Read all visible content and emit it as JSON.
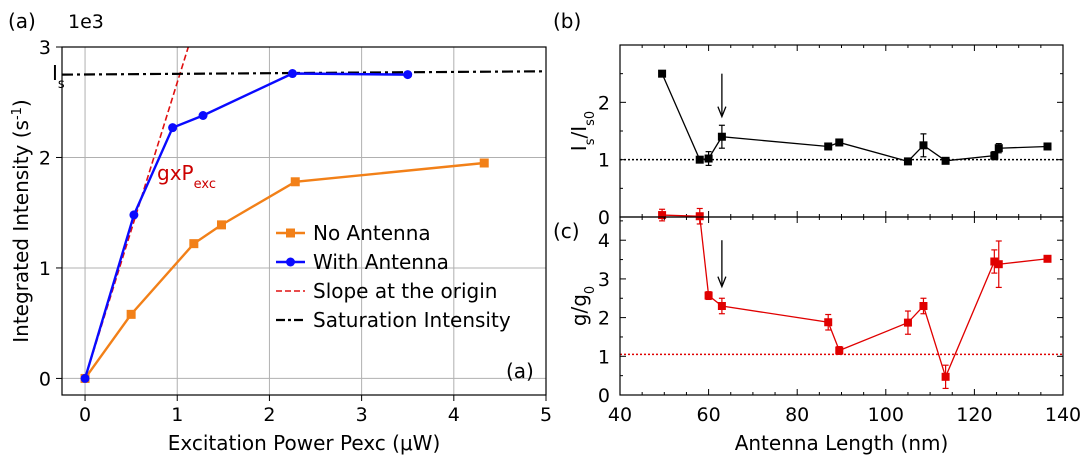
{
  "chart_data": [
    {
      "panel_label": "(a)",
      "corner_label": "(a)",
      "type": "line",
      "xlabel": "Excitation Power Pexc (μW)",
      "ylabel_main": "Integrated Intensity (s",
      "ylabel_sup": "-1",
      "ylabel_end": ")",
      "exponent_label": "1e3",
      "xlim": [
        -0.25,
        5.0
      ],
      "ylim": [
        -0.15,
        3.0
      ],
      "xticks": [
        0,
        1,
        2,
        3,
        4,
        5
      ],
      "yticks": [
        0,
        1,
        2,
        3
      ],
      "grid": true,
      "legend_position": "lower-right",
      "series": [
        {
          "name": "No Antenna",
          "color": "#f28018",
          "marker": "square",
          "x": [
            0,
            0.5,
            1.18,
            1.48,
            2.28,
            4.33
          ],
          "y": [
            0,
            0.58,
            1.22,
            1.39,
            1.78,
            1.95
          ]
        },
        {
          "name": "With Antenna",
          "color": "#0a0aff",
          "marker": "circle",
          "x": [
            0,
            0.53,
            0.95,
            1.28,
            2.25,
            3.5
          ],
          "y": [
            0,
            1.48,
            2.27,
            2.38,
            2.76,
            2.75
          ]
        },
        {
          "name": "Slope at the origin",
          "color": "#e01010",
          "style": "dashed",
          "x": [
            0,
            1.12
          ],
          "y": [
            0,
            3.0
          ]
        },
        {
          "name": "Saturation Intensity",
          "color": "#000000",
          "style": "dashdot",
          "x": [
            -0.25,
            5.0
          ],
          "y": [
            2.75,
            2.78
          ]
        }
      ],
      "annotations": {
        "slope_main": "gxP",
        "slope_sub": "exc",
        "slope_color": "#cc0000",
        "sat_main": "I",
        "sat_sub": "s"
      }
    },
    {
      "panel_label": "(b)",
      "type": "scatter",
      "ylabel_main": "I",
      "ylabel_sub1": "s",
      "ylabel_mid": "/I",
      "ylabel_sub2": "s0",
      "xlim": [
        40,
        140
      ],
      "ylim": [
        0,
        3.0
      ],
      "yticks": [
        0,
        1,
        2
      ],
      "reference_y": 1.0,
      "arrow_x": 63,
      "arrow_y_from": 2.5,
      "arrow_y_to": 1.75,
      "series": [
        {
          "color": "#000000",
          "marker": "square",
          "x": [
            49.5,
            58,
            60,
            63,
            87,
            89.5,
            105,
            108.5,
            113.5,
            124.5,
            125.5,
            136.5
          ],
          "y": [
            2.5,
            1.0,
            1.02,
            1.4,
            1.23,
            1.3,
            0.97,
            1.25,
            0.98,
            1.07,
            1.2,
            1.23
          ],
          "err": [
            0,
            0.04,
            0.12,
            0.2,
            0.05,
            0.04,
            0.05,
            0.2,
            0.03,
            0.07,
            0.08,
            0.03
          ]
        }
      ]
    },
    {
      "panel_label": "(c)",
      "type": "scatter",
      "ylabel_main": "g/g",
      "ylabel_sub": "0",
      "xlabel": "Antenna Length (nm)",
      "xlim": [
        40,
        140
      ],
      "xticks": [
        40,
        60,
        80,
        100,
        120,
        140
      ],
      "ylim": [
        0,
        4.6
      ],
      "yticks": [
        0,
        1,
        2,
        3,
        4
      ],
      "reference_y": 1.05,
      "arrow_x": 63,
      "arrow_y_from": 4.0,
      "arrow_y_to": 2.8,
      "series": [
        {
          "color": "#e00000",
          "marker": "square",
          "x": [
            49.5,
            58,
            60,
            63,
            87,
            89.5,
            105,
            108.5,
            113.5,
            124.5,
            125.5,
            136.5
          ],
          "y": [
            4.65,
            4.62,
            2.57,
            2.3,
            1.88,
            1.15,
            1.87,
            2.3,
            0.47,
            3.45,
            3.38,
            3.52
          ],
          "err": [
            0.15,
            0.2,
            0.1,
            0.2,
            0.2,
            0.1,
            0.3,
            0.2,
            0.3,
            0.3,
            0.6,
            0.05
          ]
        }
      ]
    }
  ]
}
